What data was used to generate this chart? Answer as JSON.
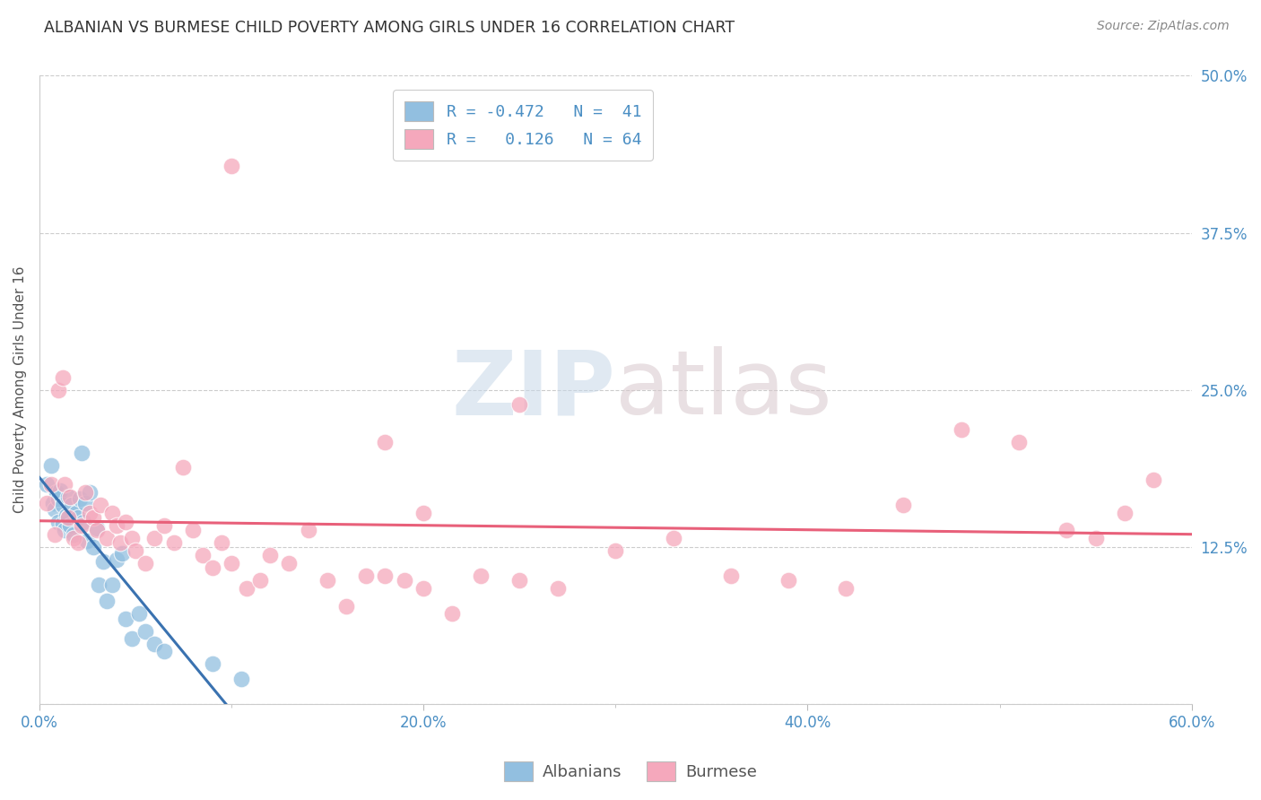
{
  "title": "ALBANIAN VS BURMESE CHILD POVERTY AMONG GIRLS UNDER 16 CORRELATION CHART",
  "source": "Source: ZipAtlas.com",
  "ylabel": "Child Poverty Among Girls Under 16",
  "xlim": [
    0.0,
    0.6
  ],
  "ylim": [
    0.0,
    0.5
  ],
  "xticks": [
    0.0,
    0.2,
    0.4,
    0.6
  ],
  "xtick_labels": [
    "0.0%",
    "20.0%",
    "40.0%",
    "60.0%"
  ],
  "yticks": [
    0.0,
    0.125,
    0.25,
    0.375,
    0.5
  ],
  "ytick_labels": [
    "",
    "12.5%",
    "25.0%",
    "37.5%",
    "50.0%"
  ],
  "watermark_zip": "ZIP",
  "watermark_atlas": "atlas",
  "legend_blue_label": "R = -0.472   N =  41",
  "legend_pink_label": "R =   0.126   N = 64",
  "bottom_legend_albanians": "Albanians",
  "bottom_legend_burmese": "Burmese",
  "blue_color": "#92BFE0",
  "pink_color": "#F5A8BC",
  "blue_line_color": "#3A72B0",
  "pink_line_color": "#E8607A",
  "tick_color": "#4B8FC4",
  "grid_color": "#CCCCCC",
  "albanians_x": [
    0.004,
    0.006,
    0.007,
    0.008,
    0.009,
    0.01,
    0.01,
    0.011,
    0.012,
    0.012,
    0.013,
    0.014,
    0.015,
    0.015,
    0.016,
    0.017,
    0.018,
    0.019,
    0.02,
    0.021,
    0.022,
    0.023,
    0.024,
    0.025,
    0.026,
    0.028,
    0.03,
    0.031,
    0.033,
    0.035,
    0.038,
    0.04,
    0.043,
    0.045,
    0.048,
    0.052,
    0.055,
    0.06,
    0.065,
    0.09,
    0.105
  ],
  "albanians_y": [
    0.175,
    0.19,
    0.16,
    0.155,
    0.168,
    0.145,
    0.163,
    0.17,
    0.158,
    0.143,
    0.138,
    0.15,
    0.165,
    0.148,
    0.142,
    0.158,
    0.135,
    0.152,
    0.148,
    0.163,
    0.2,
    0.145,
    0.16,
    0.13,
    0.168,
    0.125,
    0.14,
    0.095,
    0.113,
    0.082,
    0.095,
    0.115,
    0.12,
    0.068,
    0.052,
    0.072,
    0.058,
    0.048,
    0.042,
    0.032,
    0.02
  ],
  "burmese_x": [
    0.004,
    0.006,
    0.008,
    0.01,
    0.012,
    0.013,
    0.015,
    0.016,
    0.018,
    0.02,
    0.022,
    0.024,
    0.026,
    0.028,
    0.03,
    0.032,
    0.035,
    0.038,
    0.04,
    0.042,
    0.045,
    0.048,
    0.05,
    0.055,
    0.06,
    0.065,
    0.07,
    0.075,
    0.08,
    0.085,
    0.09,
    0.095,
    0.1,
    0.108,
    0.115,
    0.12,
    0.13,
    0.14,
    0.15,
    0.16,
    0.17,
    0.18,
    0.19,
    0.2,
    0.215,
    0.23,
    0.25,
    0.27,
    0.3,
    0.33,
    0.36,
    0.39,
    0.42,
    0.45,
    0.48,
    0.51,
    0.535,
    0.55,
    0.565,
    0.58,
    0.1,
    0.18,
    0.25,
    0.2
  ],
  "burmese_y": [
    0.16,
    0.175,
    0.135,
    0.25,
    0.26,
    0.175,
    0.148,
    0.165,
    0.132,
    0.128,
    0.142,
    0.168,
    0.152,
    0.148,
    0.138,
    0.158,
    0.132,
    0.152,
    0.142,
    0.128,
    0.145,
    0.132,
    0.122,
    0.112,
    0.132,
    0.142,
    0.128,
    0.188,
    0.138,
    0.118,
    0.108,
    0.128,
    0.112,
    0.092,
    0.098,
    0.118,
    0.112,
    0.138,
    0.098,
    0.078,
    0.102,
    0.102,
    0.098,
    0.092,
    0.072,
    0.102,
    0.098,
    0.092,
    0.122,
    0.132,
    0.102,
    0.098,
    0.092,
    0.158,
    0.218,
    0.208,
    0.138,
    0.132,
    0.152,
    0.178,
    0.428,
    0.208,
    0.238,
    0.152
  ]
}
